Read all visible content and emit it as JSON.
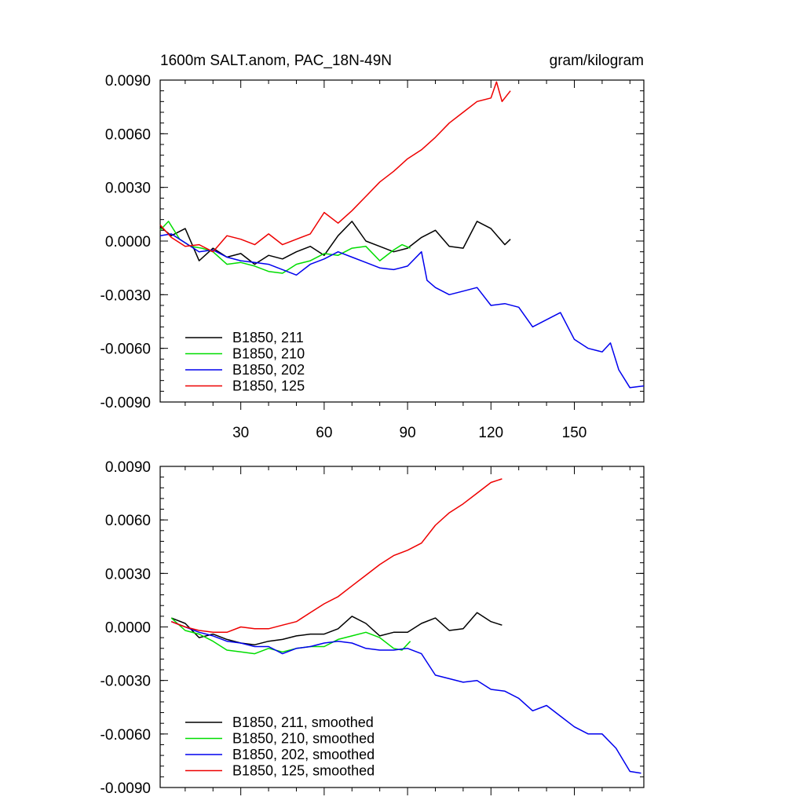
{
  "chart_data": [
    {
      "type": "line",
      "title": "1600m SALT.anom, PAC_18N-49N",
      "units": "gram/kilogram",
      "xlim": [
        1,
        175
      ],
      "ylim": [
        -0.009,
        0.009
      ],
      "xticks": [
        30,
        60,
        90,
        120,
        150
      ],
      "yticks": [
        -0.009,
        -0.006,
        -0.003,
        0.0,
        0.003,
        0.006,
        0.009
      ],
      "xtick_labels": [
        "30",
        "60",
        "90",
        "120",
        "150"
      ],
      "ytick_labels": [
        "-0.0090",
        "-0.0060",
        "-0.0030",
        "0.0000",
        "0.0030",
        "0.0060",
        "0.0090"
      ],
      "legend_position": "bottom-left",
      "series": [
        {
          "name": "B1850, 211",
          "color": "#000000",
          "x": [
            1,
            5,
            10,
            15,
            20,
            25,
            30,
            35,
            40,
            45,
            50,
            55,
            60,
            65,
            70,
            75,
            80,
            85,
            90,
            95,
            100,
            105,
            110,
            115,
            120,
            125,
            127
          ],
          "y": [
            0.0008,
            0.0003,
            0.0007,
            -0.0011,
            -0.0004,
            -0.0009,
            -0.0007,
            -0.0013,
            -0.0008,
            -0.001,
            -0.0006,
            -0.0003,
            -0.0008,
            0.0003,
            0.0011,
            0.0,
            -0.0003,
            -0.0006,
            -0.0004,
            0.0002,
            0.0006,
            -0.0003,
            -0.0004,
            0.0011,
            0.0007,
            -0.0002,
            0.0001
          ]
        },
        {
          "name": "B1850, 210",
          "color": "#00dd00",
          "x": [
            1,
            4,
            8,
            12,
            16,
            20,
            25,
            30,
            35,
            40,
            45,
            50,
            55,
            60,
            65,
            70,
            75,
            80,
            85,
            88,
            91
          ],
          "y": [
            0.0006,
            0.0011,
            0.0001,
            -0.0003,
            -0.0004,
            -0.0006,
            -0.0013,
            -0.0012,
            -0.0014,
            -0.0017,
            -0.0018,
            -0.0013,
            -0.0011,
            -0.0007,
            -0.0008,
            -0.0004,
            -0.0003,
            -0.0011,
            -0.0005,
            -0.0002,
            -0.0004
          ]
        },
        {
          "name": "B1850, 202",
          "color": "#0000ee",
          "x": [
            1,
            5,
            10,
            15,
            20,
            25,
            30,
            35,
            40,
            45,
            50,
            55,
            60,
            65,
            70,
            75,
            80,
            85,
            90,
            95,
            97,
            100,
            105,
            110,
            115,
            120,
            125,
            130,
            135,
            140,
            145,
            150,
            155,
            160,
            163,
            166,
            170,
            175
          ],
          "y": [
            0.0003,
            0.0004,
            -0.0001,
            -0.0006,
            -0.0005,
            -0.0009,
            -0.0011,
            -0.0012,
            -0.0013,
            -0.0016,
            -0.0019,
            -0.0013,
            -0.001,
            -0.0006,
            -0.0009,
            -0.0012,
            -0.0015,
            -0.0016,
            -0.0014,
            -0.0006,
            -0.0022,
            -0.0026,
            -0.003,
            -0.0028,
            -0.0026,
            -0.0036,
            -0.0035,
            -0.0037,
            -0.0048,
            -0.0044,
            -0.004,
            -0.0055,
            -0.006,
            -0.0062,
            -0.0057,
            -0.0072,
            -0.0082,
            -0.0081
          ]
        },
        {
          "name": "B1850, 125",
          "color": "#ee0000",
          "x": [
            1,
            5,
            10,
            15,
            20,
            25,
            30,
            35,
            40,
            45,
            50,
            55,
            60,
            65,
            70,
            75,
            80,
            85,
            90,
            95,
            100,
            105,
            110,
            115,
            120,
            122,
            124,
            127
          ],
          "y": [
            0.0009,
            0.0002,
            -0.0003,
            -0.0002,
            -0.0006,
            0.0003,
            0.0001,
            -0.0002,
            0.0004,
            -0.0002,
            0.0001,
            0.0004,
            0.0016,
            0.001,
            0.0017,
            0.0025,
            0.0033,
            0.0039,
            0.0046,
            0.0051,
            0.0058,
            0.0066,
            0.0072,
            0.0078,
            0.008,
            0.0089,
            0.0078,
            0.0084
          ]
        }
      ]
    },
    {
      "type": "line",
      "xlim": [
        1,
        175
      ],
      "ylim": [
        -0.009,
        0.009
      ],
      "xticks": [
        30,
        60,
        90,
        120,
        150
      ],
      "yticks": [
        -0.009,
        -0.006,
        -0.003,
        0.0,
        0.003,
        0.006,
        0.009
      ],
      "ytick_labels": [
        "-0.0090",
        "-0.0060",
        "-0.0030",
        "0.0000",
        "0.0030",
        "0.0060",
        "0.0090"
      ],
      "legend_position": "bottom-left",
      "series": [
        {
          "name": "B1850, 211, smoothed",
          "color": "#000000",
          "x": [
            5,
            10,
            15,
            20,
            25,
            30,
            35,
            40,
            45,
            50,
            55,
            60,
            65,
            70,
            75,
            80,
            85,
            90,
            95,
            100,
            105,
            110,
            115,
            120,
            124
          ],
          "y": [
            0.0005,
            0.0002,
            -0.0006,
            -0.0004,
            -0.0007,
            -0.0009,
            -0.001,
            -0.0008,
            -0.0007,
            -0.0005,
            -0.0004,
            -0.0004,
            -0.0001,
            0.0006,
            0.0002,
            -0.0005,
            -0.0003,
            -0.0003,
            0.0002,
            0.0005,
            -0.0002,
            -0.0001,
            0.0008,
            0.0003,
            0.0001
          ]
        },
        {
          "name": "B1850, 210, smoothed",
          "color": "#00dd00",
          "x": [
            5,
            10,
            15,
            20,
            25,
            30,
            35,
            40,
            45,
            50,
            55,
            60,
            65,
            70,
            75,
            80,
            85,
            88,
            91
          ],
          "y": [
            0.0005,
            -0.0002,
            -0.0004,
            -0.0008,
            -0.0013,
            -0.0014,
            -0.0015,
            -0.0012,
            -0.0014,
            -0.0012,
            -0.0011,
            -0.0011,
            -0.0007,
            -0.0005,
            -0.0003,
            -0.0006,
            -0.0012,
            -0.0013,
            -0.0008
          ]
        },
        {
          "name": "B1850, 202, smoothed",
          "color": "#0000ee",
          "x": [
            5,
            10,
            15,
            20,
            25,
            30,
            35,
            40,
            45,
            50,
            55,
            60,
            65,
            70,
            75,
            80,
            85,
            90,
            95,
            100,
            105,
            110,
            115,
            120,
            125,
            130,
            135,
            140,
            145,
            150,
            155,
            160,
            165,
            170,
            174
          ],
          "y": [
            0.0003,
            0.0,
            -0.0003,
            -0.0005,
            -0.0008,
            -0.0009,
            -0.0011,
            -0.0011,
            -0.0015,
            -0.0012,
            -0.0011,
            -0.0009,
            -0.0008,
            -0.0009,
            -0.0012,
            -0.0013,
            -0.0013,
            -0.0012,
            -0.0015,
            -0.0027,
            -0.0029,
            -0.0031,
            -0.003,
            -0.0035,
            -0.0036,
            -0.004,
            -0.0047,
            -0.0044,
            -0.005,
            -0.0056,
            -0.006,
            -0.006,
            -0.0068,
            -0.0081,
            -0.0082
          ]
        },
        {
          "name": "B1850, 125, smoothed",
          "color": "#ee0000",
          "x": [
            5,
            10,
            15,
            20,
            25,
            30,
            35,
            40,
            45,
            50,
            55,
            60,
            65,
            70,
            75,
            80,
            85,
            90,
            95,
            100,
            105,
            110,
            115,
            120,
            124
          ],
          "y": [
            0.0003,
            0.0,
            -0.0002,
            -0.0003,
            -0.0003,
            0.0,
            -0.0001,
            -0.0001,
            0.0001,
            0.0003,
            0.0008,
            0.0013,
            0.0017,
            0.0023,
            0.0029,
            0.0035,
            0.004,
            0.0043,
            0.0047,
            0.0057,
            0.0064,
            0.0069,
            0.0075,
            0.0081,
            0.0083
          ]
        }
      ]
    }
  ]
}
